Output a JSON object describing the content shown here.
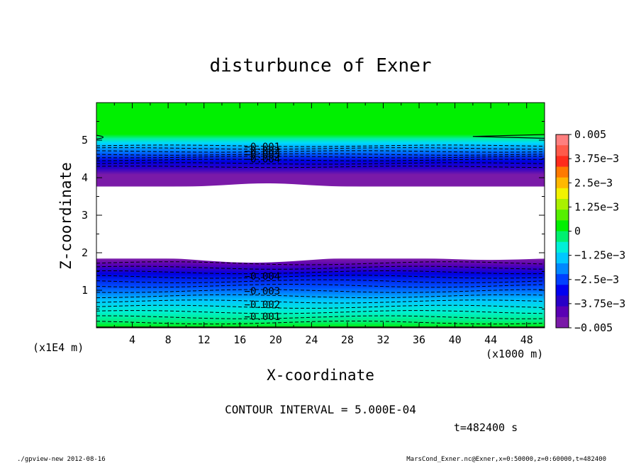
{
  "chart_data": {
    "type": "heatmap",
    "title": "disturbunce of Exner",
    "xlabel": "X-coordinate",
    "ylabel": "Z-coordinate",
    "x_unit": "(x1000 m)",
    "y_unit": "(x1E4 m)",
    "xlim": [
      0,
      50
    ],
    "ylim": [
      0,
      6
    ],
    "x_ticks": [
      4,
      8,
      12,
      16,
      20,
      24,
      28,
      32,
      36,
      40,
      44,
      48
    ],
    "y_ticks": [
      1,
      2,
      3,
      4,
      5
    ],
    "contour_interval_text": "CONTOUR INTERVAL = 5.000E-04",
    "time_text": "t=482400 s",
    "colorbar": {
      "vmin": -0.005,
      "vmax": 0.005,
      "labels": [
        "0.005",
        "3.75e-3",
        "2.5e-3",
        "1.25e-3",
        "0",
        "-1.25e-3",
        "-2.5e-3",
        "-3.75e-3",
        "-0.005"
      ],
      "colors": [
        "#ff7f7f",
        "#ff5a4a",
        "#ff2c1c",
        "#ff7a00",
        "#ffb800",
        "#f2f200",
        "#aaf000",
        "#55f000",
        "#00f000",
        "#00f070",
        "#00f0d8",
        "#00c8ff",
        "#0088ff",
        "#0040ff",
        "#0000f0",
        "#2800c8",
        "#5a00b4",
        "#7a1aa8"
      ]
    },
    "upper_layer_contours": [
      -0.001,
      -0.002,
      -0.003,
      -0.004
    ],
    "lower_layer_contours": [
      -0.004,
      -0.003,
      -0.002,
      -0.001
    ],
    "missing_region_z": [
      1.85,
      3.75
    ]
  },
  "footer": {
    "left": "./gpview-new   2012-08-16",
    "right": "MarsCond_Exner.nc@Exner,x=0:50000,z=0:60000,t=482400"
  }
}
